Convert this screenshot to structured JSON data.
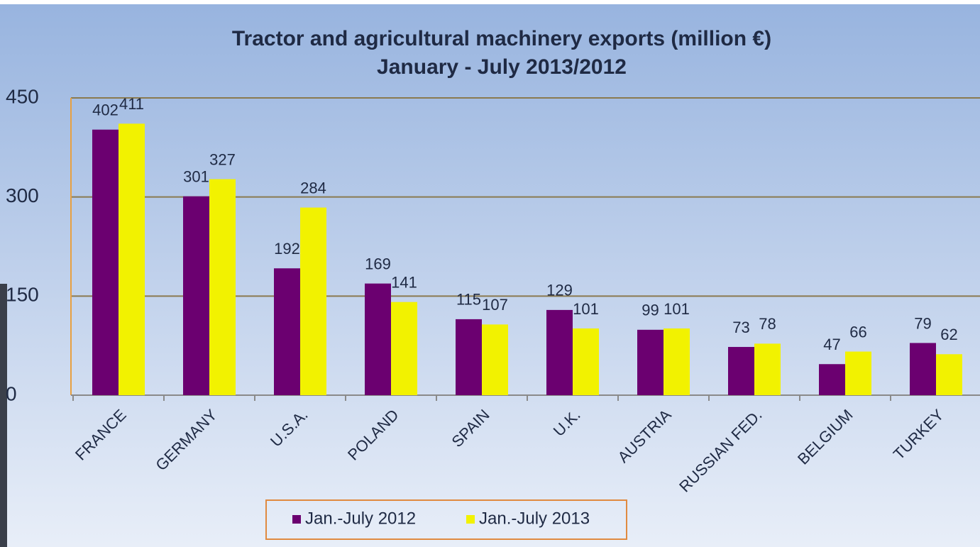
{
  "chart_data": {
    "type": "bar",
    "title": "Tractor and agricultural machinery exports (million €)",
    "subtitle": "January - July 2013/2012",
    "categories": [
      "FRANCE",
      "GERMANY",
      "U.S.A.",
      "POLAND",
      "SPAIN",
      "U.K.",
      "AUSTRIA",
      "RUSSIAN FED.",
      "BELGIUM",
      "TURKEY"
    ],
    "series": [
      {
        "name": "Jan.-July 2012",
        "color": "#6b0070",
        "values": [
          402,
          301,
          192,
          169,
          115,
          129,
          99,
          73,
          47,
          79
        ]
      },
      {
        "name": "Jan.-July 2013",
        "color": "#f2f200",
        "values": [
          411,
          327,
          284,
          141,
          107,
          101,
          101,
          78,
          66,
          62
        ]
      }
    ],
    "ylim": [
      0,
      450
    ],
    "yticks": [
      0,
      150,
      300,
      450
    ],
    "grid": true,
    "legend": "bottom"
  }
}
